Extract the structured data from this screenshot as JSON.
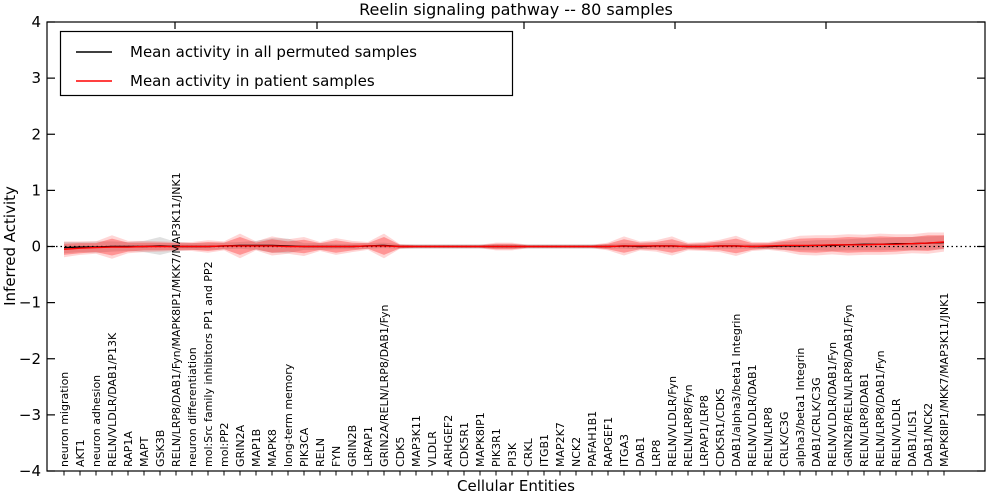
{
  "title": "Reelin signaling pathway -- 80 samples",
  "legend": {
    "items": [
      {
        "label": "Mean activity in all permuted samples",
        "color": "#000000"
      },
      {
        "label": "Mean activity in patient samples",
        "color": "#ff0000"
      }
    ]
  },
  "y_axis": {
    "label": "Inferred Activity",
    "tick_labels": [
      "4",
      "3",
      "2",
      "1",
      "0",
      "−1",
      "−2",
      "−3",
      "−4"
    ],
    "tick_values": [
      4,
      3,
      2,
      1,
      0,
      -1,
      -2,
      -3,
      -4
    ]
  },
  "x_axis": {
    "label": "Cellular Entities"
  },
  "chart_data": {
    "type": "line",
    "title": "Reelin signaling pathway -- 80 samples",
    "xlabel": "Cellular Entities",
    "ylabel": "Inferred Activity",
    "ylim": [
      -4,
      4
    ],
    "grid": false,
    "legend_position": "upper left",
    "baseline": 0,
    "categories": [
      "neuron migration",
      "AKT1",
      "neuron adhesion",
      "RELN/VLDLR/DAB1/P13K",
      "RAP1A",
      "MAPT",
      "GSK3B",
      "RELN/LRP8/DAB1/Fyn/MAPK8IP1/MKK7/MAP3K11/JNK1",
      "neuron differentiation",
      "mol:Src family inhibitors PP1 and PP2",
      "mol:PP2",
      "GRIN2A",
      "MAP1B",
      "MAPK8",
      "long-term memory",
      "PIK3CA",
      "RELN",
      "FYN",
      "GRIN2B",
      "LRPAP1",
      "GRIN2A/RELN/LRP8/DAB1/Fyn",
      "CDK5",
      "MAP3K11",
      "VLDLR",
      "ARHGEF2",
      "CDK5R1",
      "MAPK8IP1",
      "PIK3R1",
      "PI3K",
      "CRKL",
      "ITGB1",
      "MAP2K7",
      "NCK2",
      "PAFAH1B1",
      "RAPGEF1",
      "ITGA3",
      "DAB1",
      "LRP8",
      "RELN/VLDLR/Fyn",
      "RELN/LRP8/Fyn",
      "LRPAP1/LRP8",
      "CDK5R1/CDK5",
      "DAB1/alpha3/beta1 Integrin",
      "RELN/VLDLR/DAB1",
      "RELN/LRP8",
      "CRLK/C3G",
      "alpha3/beta1 Integrin",
      "DAB1/CRLK/C3G",
      "RELN/VLDLR/DAB1/Fyn",
      "GRIN2B/RELN/LRP8/DAB1/Fyn",
      "RELN/LRP8/DAB1",
      "RELN/LRP8/DAB1/Fyn",
      "RELN/VLDLR",
      "DAB1/LIS1",
      "DAB1/NCK2",
      "MAPK8IP1/MKK7/MAP3K11/JNK1"
    ],
    "series": [
      {
        "name": "Mean activity in all permuted samples",
        "color": "#000000",
        "values": [
          -0.02,
          -0.01,
          -0.01,
          0,
          0,
          0,
          0.01,
          0,
          0,
          0,
          0.01,
          0.02,
          0.02,
          0.02,
          0.01,
          0,
          0,
          0,
          0,
          0.01,
          0.02,
          0,
          0,
          0,
          0,
          0,
          0,
          0,
          0,
          0,
          0,
          0,
          0,
          0,
          0,
          0.01,
          0,
          0.01,
          0.01,
          0,
          0,
          0.01,
          0.01,
          0,
          0,
          0.01,
          0.01,
          0.02,
          0.02,
          0.03,
          0.04,
          0.04,
          0.05,
          0.05,
          0.06,
          0.07
        ]
      },
      {
        "name": "Mean activity in patient samples",
        "color": "#ff0000",
        "values": [
          -0.05,
          -0.03,
          -0.02,
          -0.01,
          -0.01,
          0,
          0,
          0,
          0,
          0,
          0.01,
          0.01,
          0.01,
          0.01,
          0,
          0,
          0,
          0,
          0,
          0.01,
          0.01,
          0,
          0,
          0,
          0,
          0,
          0,
          0,
          0,
          0,
          0,
          0,
          0,
          0,
          0,
          0.01,
          0.01,
          0.01,
          0.01,
          0,
          0,
          0.01,
          0.01,
          0,
          0.01,
          0.02,
          0.02,
          0.02,
          0.03,
          0.03,
          0.03,
          0.04,
          0.04,
          0.05,
          0.06,
          0.08
        ]
      }
    ],
    "bands": [
      {
        "name": "permuted samples range",
        "center_series": 0,
        "color": "#000000",
        "opacity": 0.12,
        "half_widths": [
          0.1,
          0.09,
          0.1,
          0.09,
          0.08,
          0.1,
          0.16,
          0.08,
          0.06,
          0.06,
          0.06,
          0.06,
          0.08,
          0.13,
          0.13,
          0.06,
          0.06,
          0.05,
          0.05,
          0.05,
          0.05,
          0.04,
          0.04,
          0.04,
          0.04,
          0.04,
          0.04,
          0.04,
          0.04,
          0.04,
          0.04,
          0.04,
          0.04,
          0.04,
          0.04,
          0.05,
          0.05,
          0.05,
          0.05,
          0.04,
          0.04,
          0.05,
          0.05,
          0.04,
          0.05,
          0.07,
          0.08,
          0.09,
          0.1,
          0.1,
          0.11,
          0.11,
          0.11,
          0.12,
          0.12,
          0.12
        ]
      },
      {
        "name": "patient samples range (outer)",
        "center_series": 1,
        "color": "#ff0000",
        "opacity": 0.16,
        "half_widths": [
          0.14,
          0.12,
          0.11,
          0.21,
          0.11,
          0.1,
          0.09,
          0.08,
          0.08,
          0.11,
          0.08,
          0.22,
          0.08,
          0.17,
          0.13,
          0.17,
          0.08,
          0.15,
          0.1,
          0.07,
          0.22,
          0.04,
          0.03,
          0.03,
          0.03,
          0.03,
          0.03,
          0.07,
          0.07,
          0.03,
          0.03,
          0.03,
          0.03,
          0.03,
          0.07,
          0.17,
          0.08,
          0.1,
          0.17,
          0.07,
          0.08,
          0.11,
          0.18,
          0.08,
          0.07,
          0.11,
          0.17,
          0.18,
          0.17,
          0.19,
          0.18,
          0.19,
          0.18,
          0.17,
          0.19,
          0.17
        ]
      },
      {
        "name": "patient samples range (inner)",
        "center_series": 1,
        "color": "#ff0000",
        "opacity": 0.3,
        "half_widths": [
          0.1,
          0.09,
          0.08,
          0.15,
          0.08,
          0.07,
          0.07,
          0.06,
          0.06,
          0.08,
          0.06,
          0.16,
          0.06,
          0.12,
          0.09,
          0.12,
          0.06,
          0.11,
          0.07,
          0.05,
          0.16,
          0.03,
          0.02,
          0.02,
          0.02,
          0.02,
          0.02,
          0.05,
          0.05,
          0.02,
          0.02,
          0.02,
          0.02,
          0.02,
          0.05,
          0.12,
          0.06,
          0.07,
          0.12,
          0.05,
          0.06,
          0.08,
          0.13,
          0.06,
          0.05,
          0.08,
          0.12,
          0.13,
          0.12,
          0.14,
          0.13,
          0.14,
          0.13,
          0.12,
          0.14,
          0.12
        ]
      }
    ]
  }
}
